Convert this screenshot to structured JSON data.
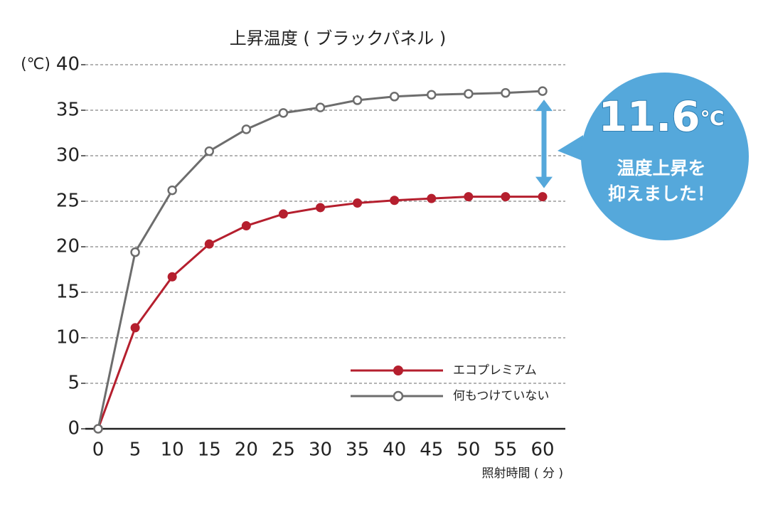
{
  "chart_data": {
    "type": "line",
    "title": "上昇温度 ( ブラックパネル )",
    "y_label": "(℃)",
    "x_label": "照射時間 ( 分 )",
    "x": [
      0,
      5,
      10,
      15,
      20,
      25,
      30,
      35,
      40,
      45,
      50,
      55,
      60
    ],
    "series": [
      {
        "name": "エコプレミアム",
        "color": "#b51f2e",
        "marker": "filled",
        "values": [
          0,
          11.1,
          16.7,
          20.3,
          22.3,
          23.6,
          24.3,
          24.8,
          25.1,
          25.3,
          25.5,
          25.5,
          25.5
        ]
      },
      {
        "name": "何もつけていない",
        "color": "#6d6d6d",
        "marker": "hollow",
        "values": [
          0,
          19.4,
          26.2,
          30.5,
          32.9,
          34.7,
          35.3,
          36.1,
          36.5,
          36.7,
          36.8,
          36.9,
          37.1
        ]
      }
    ],
    "xlim": [
      0,
      60
    ],
    "xticks": [
      0,
      5,
      10,
      15,
      20,
      25,
      30,
      35,
      40,
      45,
      50,
      55,
      60
    ],
    "ylim": [
      0,
      40
    ],
    "yticks": [
      0,
      5,
      10,
      15,
      20,
      25,
      30,
      35,
      40
    ],
    "grid": true,
    "legend": "lower right",
    "annotation": {
      "value": "11.6",
      "unit": "℃",
      "lines": [
        "温度上昇を",
        "抑えました！"
      ],
      "color": "#55a8db"
    }
  }
}
